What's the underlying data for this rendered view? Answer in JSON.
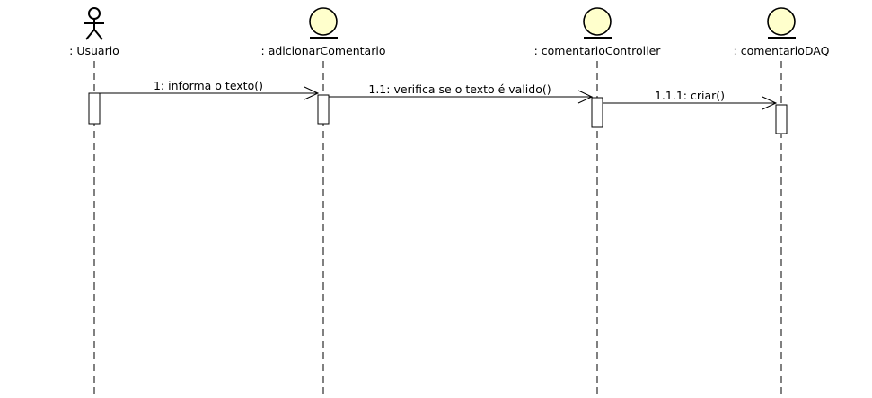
{
  "colors": {
    "entity_fill": "#ffffcc",
    "line": "#000000",
    "background": "#ffffff"
  },
  "participants": [
    {
      "id": "usuario",
      "icon": "actor-icon",
      "label": ": Usuario"
    },
    {
      "id": "adicionarComentario",
      "icon": "entity-icon",
      "label": ": adicionarComentario"
    },
    {
      "id": "comentarioController",
      "icon": "entity-icon",
      "label": ": comentarioController"
    },
    {
      "id": "comentarioDAQ",
      "icon": "entity-icon",
      "label": ": comentarioDAQ"
    }
  ],
  "messages": [
    {
      "id": "m1",
      "from": "usuario",
      "to": "adicionarComentario",
      "label": "1: informa o texto()"
    },
    {
      "id": "m2",
      "from": "adicionarComentario",
      "to": "comentarioController",
      "label": "1.1: verifica se o texto é valido()"
    },
    {
      "id": "m3",
      "from": "comentarioController",
      "to": "comentarioDAQ",
      "label": "1.1.1: criar()"
    }
  ]
}
